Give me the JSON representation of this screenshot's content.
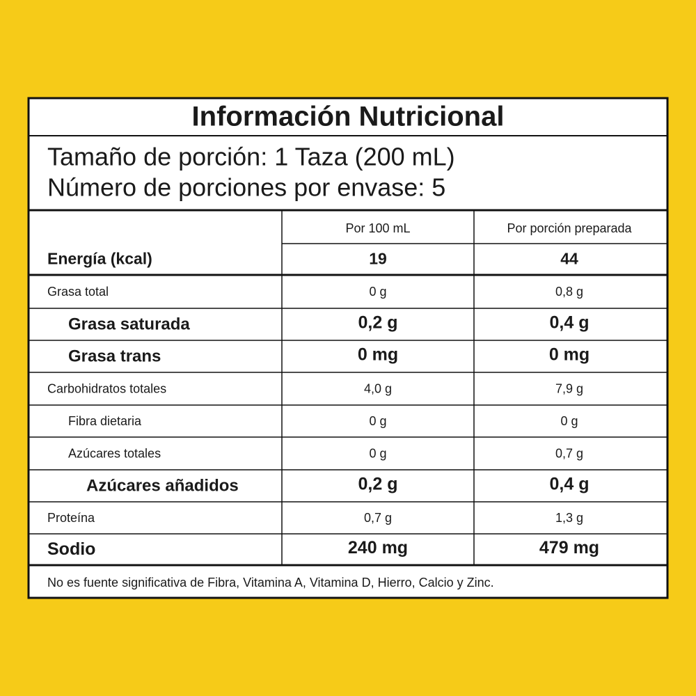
{
  "header": {
    "title": "Información Nutricional",
    "serving_size": "Tamaño de porción: 1 Taza (200 mL)",
    "servings_per_container": "Número de porciones por envase: 5"
  },
  "table": {
    "columns": [
      "Por 100 mL",
      "Por porción preparada"
    ],
    "rows": [
      [
        "Energía (kcal)",
        "19",
        "44"
      ],
      [
        "Grasa total",
        "0 g",
        "0,8 g"
      ],
      [
        "Grasa saturada",
        "0,2 g",
        "0,4 g"
      ],
      [
        "Grasa trans",
        "0 mg",
        "0 mg"
      ],
      [
        "Carbohidratos totales",
        "4,0 g",
        "7,9 g"
      ],
      [
        "Fibra dietaria",
        "0 g",
        "0 g"
      ],
      [
        "Azúcares totales",
        "0 g",
        "0,7 g"
      ],
      [
        "Azúcares añadidos",
        "0,2 g",
        "0,4 g"
      ],
      [
        "Proteína",
        "0,7 g",
        "1,3 g"
      ],
      [
        "Sodio",
        "240 mg",
        "479 mg"
      ]
    ]
  },
  "footnote": "No es fuente significativa de Fibra, Vitamina A, Vitamina D, Hierro, Calcio y Zinc."
}
